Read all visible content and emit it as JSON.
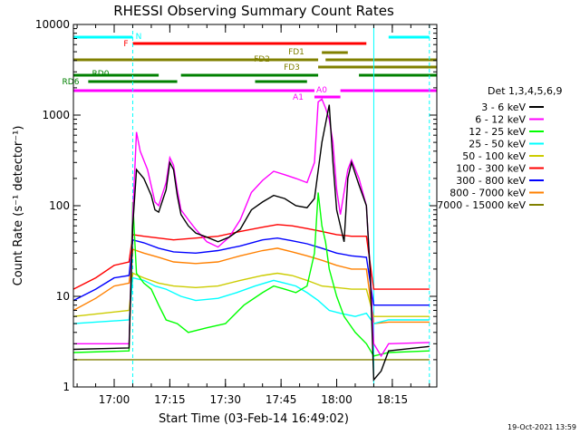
{
  "chart_data": {
    "type": "line",
    "title": "RHESSI Observing Summary Count Rates",
    "xlabel": "Start Time (03-Feb-14 16:49:02)",
    "ylabel": "Count Rate (s⁻¹ detector⁻¹)",
    "y_scale": "log",
    "ylim": [
      1,
      10000
    ],
    "xlim": [
      "16:49",
      "18:27"
    ],
    "x_unit": "clock time HH:MM",
    "x_ticks": [
      "17:00",
      "17:15",
      "17:30",
      "17:45",
      "18:00",
      "18:15"
    ],
    "y_ticks": [
      "1",
      "10",
      "100",
      "1000",
      "10000"
    ],
    "legend_title": "Det 1,3,4,5,6,9",
    "legend_position": "right",
    "timestamp": "19-Oct-2021 13:59",
    "flag_bars": [
      {
        "label": "N",
        "color": "#00ffff",
        "segments": [
          [
            "16:49",
            "17:05"
          ],
          [
            "18:14",
            "18:25"
          ]
        ]
      },
      {
        "label": "F",
        "color": "#ff0000",
        "segments": [
          [
            "17:05",
            "18:08"
          ]
        ]
      },
      {
        "label": "FD1",
        "color": "#808000",
        "segments": [
          [
            "17:56",
            "18:03"
          ]
        ]
      },
      {
        "label": "FD2",
        "color": "#808000",
        "segments": [
          [
            "16:49",
            "17:55"
          ],
          [
            "17:57",
            "18:27"
          ]
        ]
      },
      {
        "label": "FD3",
        "color": "#808000",
        "segments": [
          [
            "17:55",
            "18:27"
          ]
        ]
      },
      {
        "label": "RD0",
        "color": "#008000",
        "segments": [
          [
            "16:49",
            "17:12"
          ],
          [
            "17:18",
            "17:55"
          ],
          [
            "18:06",
            "18:27"
          ]
        ]
      },
      {
        "label": "RD6",
        "color": "#008000",
        "segments": [
          [
            "16:53",
            "17:17"
          ],
          [
            "17:38",
            "17:52"
          ]
        ]
      },
      {
        "label": "A1",
        "color": "#ff00ff",
        "segments": [
          [
            "16:49",
            "17:54"
          ],
          [
            "18:01",
            "18:27"
          ]
        ]
      },
      {
        "label": "A0",
        "color": "#ff00ff",
        "segments": [
          [
            "17:54",
            "18:01"
          ]
        ]
      }
    ],
    "markers": [
      {
        "name": "dashed-start",
        "x": "17:05",
        "color": "#00ffff"
      },
      {
        "name": "dashed-end",
        "x": "18:25",
        "color": "#00ffff"
      },
      {
        "name": "solid-edge",
        "x": "18:10",
        "color": "#00ffff"
      }
    ],
    "series": [
      {
        "name": "3 - 6 keV",
        "color": "#000000",
        "points": [
          [
            "16:49",
            2.6
          ],
          [
            "17:04",
            2.7
          ],
          [
            "17:05",
            60
          ],
          [
            "17:06",
            250
          ],
          [
            "17:08",
            200
          ],
          [
            "17:10",
            130
          ],
          [
            "17:11",
            90
          ],
          [
            "17:12",
            85
          ],
          [
            "17:14",
            150
          ],
          [
            "17:15",
            300
          ],
          [
            "17:16",
            250
          ],
          [
            "17:17",
            130
          ],
          [
            "17:18",
            80
          ],
          [
            "17:20",
            60
          ],
          [
            "17:22",
            50
          ],
          [
            "17:25",
            45
          ],
          [
            "17:28",
            40
          ],
          [
            "17:31",
            45
          ],
          [
            "17:34",
            55
          ],
          [
            "17:37",
            90
          ],
          [
            "17:40",
            110
          ],
          [
            "17:43",
            130
          ],
          [
            "17:46",
            120
          ],
          [
            "17:49",
            100
          ],
          [
            "17:52",
            95
          ],
          [
            "17:54",
            120
          ],
          [
            "17:56",
            500
          ],
          [
            "17:58",
            1300
          ],
          [
            "17:59",
            300
          ],
          [
            "18:00",
            90
          ],
          [
            "18:02",
            40
          ],
          [
            "18:03",
            200
          ],
          [
            "18:04",
            300
          ],
          [
            "18:06",
            170
          ],
          [
            "18:08",
            100
          ],
          [
            "18:09",
            20
          ],
          [
            "18:10",
            1.2
          ],
          [
            "18:12",
            1.5
          ],
          [
            "18:14",
            2.5
          ],
          [
            "18:25",
            2.8
          ]
        ]
      },
      {
        "name": "6 - 12 keV",
        "color": "#ff00ff",
        "points": [
          [
            "16:49",
            3.0
          ],
          [
            "17:04",
            3.0
          ],
          [
            "17:05",
            80
          ],
          [
            "17:06",
            650
          ],
          [
            "17:07",
            400
          ],
          [
            "17:09",
            250
          ],
          [
            "17:11",
            110
          ],
          [
            "17:12",
            100
          ],
          [
            "17:14",
            180
          ],
          [
            "17:15",
            340
          ],
          [
            "17:16",
            280
          ],
          [
            "17:17",
            150
          ],
          [
            "17:18",
            90
          ],
          [
            "17:20",
            70
          ],
          [
            "17:22",
            55
          ],
          [
            "17:25",
            40
          ],
          [
            "17:28",
            35
          ],
          [
            "17:31",
            45
          ],
          [
            "17:34",
            70
          ],
          [
            "17:37",
            140
          ],
          [
            "17:40",
            190
          ],
          [
            "17:43",
            240
          ],
          [
            "17:46",
            220
          ],
          [
            "17:49",
            200
          ],
          [
            "17:52",
            180
          ],
          [
            "17:54",
            300
          ],
          [
            "17:55",
            1400
          ],
          [
            "17:56",
            1500
          ],
          [
            "17:57",
            1200
          ],
          [
            "17:58",
            900
          ],
          [
            "17:59",
            500
          ],
          [
            "18:00",
            150
          ],
          [
            "18:01",
            80
          ],
          [
            "18:03",
            250
          ],
          [
            "18:04",
            320
          ],
          [
            "18:06",
            200
          ],
          [
            "18:08",
            100
          ],
          [
            "18:09",
            20
          ],
          [
            "18:10",
            3
          ],
          [
            "18:12",
            2.2
          ],
          [
            "18:14",
            3
          ],
          [
            "18:25",
            3.1
          ]
        ]
      },
      {
        "name": "12 - 25 keV",
        "color": "#00ff00",
        "points": [
          [
            "16:49",
            2.4
          ],
          [
            "17:04",
            2.5
          ],
          [
            "17:05",
            110
          ],
          [
            "17:06",
            18
          ],
          [
            "17:08",
            14
          ],
          [
            "17:10",
            12
          ],
          [
            "17:12",
            8
          ],
          [
            "17:14",
            5.5
          ],
          [
            "17:17",
            5
          ],
          [
            "17:20",
            4
          ],
          [
            "17:25",
            4.5
          ],
          [
            "17:30",
            5
          ],
          [
            "17:35",
            8
          ],
          [
            "17:40",
            11
          ],
          [
            "17:43",
            13
          ],
          [
            "17:46",
            12
          ],
          [
            "17:49",
            11
          ],
          [
            "17:52",
            13
          ],
          [
            "17:54",
            30
          ],
          [
            "17:55",
            140
          ],
          [
            "17:56",
            60
          ],
          [
            "17:57",
            40
          ],
          [
            "17:58",
            20
          ],
          [
            "18:00",
            10
          ],
          [
            "18:02",
            6
          ],
          [
            "18:05",
            4
          ],
          [
            "18:08",
            3
          ],
          [
            "18:10",
            2.2
          ],
          [
            "18:14",
            2.4
          ],
          [
            "18:25",
            2.5
          ]
        ]
      },
      {
        "name": "25 - 50 keV",
        "color": "#00ffff",
        "points": [
          [
            "16:49",
            5
          ],
          [
            "17:04",
            5.5
          ],
          [
            "17:05",
            16
          ],
          [
            "17:08",
            15
          ],
          [
            "17:11",
            13
          ],
          [
            "17:14",
            12
          ],
          [
            "17:18",
            10
          ],
          [
            "17:22",
            9
          ],
          [
            "17:28",
            9.5
          ],
          [
            "17:33",
            11
          ],
          [
            "17:38",
            13
          ],
          [
            "17:43",
            15
          ],
          [
            "17:46",
            14
          ],
          [
            "17:49",
            13
          ],
          [
            "17:52",
            11
          ],
          [
            "17:55",
            9
          ],
          [
            "17:58",
            7
          ],
          [
            "18:01",
            6.5
          ],
          [
            "18:05",
            6
          ],
          [
            "18:08",
            6.5
          ],
          [
            "18:10",
            5
          ],
          [
            "18:14",
            5.5
          ],
          [
            "18:25",
            5.5
          ]
        ]
      },
      {
        "name": "50 - 100 keV",
        "color": "#cccc00",
        "points": [
          [
            "16:49",
            6
          ],
          [
            "17:04",
            7
          ],
          [
            "17:05",
            18
          ],
          [
            "17:08",
            16
          ],
          [
            "17:12",
            14
          ],
          [
            "17:16",
            13
          ],
          [
            "17:22",
            12.5
          ],
          [
            "17:28",
            13
          ],
          [
            "17:34",
            15
          ],
          [
            "17:40",
            17
          ],
          [
            "17:44",
            18
          ],
          [
            "17:48",
            17
          ],
          [
            "17:52",
            15
          ],
          [
            "17:56",
            13
          ],
          [
            "18:00",
            12.5
          ],
          [
            "18:04",
            12
          ],
          [
            "18:08",
            12
          ],
          [
            "18:10",
            6
          ],
          [
            "18:14",
            6
          ],
          [
            "18:25",
            6
          ]
        ]
      },
      {
        "name": "100 - 300 keV",
        "color": "#ff0000",
        "points": [
          [
            "16:49",
            12
          ],
          [
            "16:55",
            16
          ],
          [
            "17:00",
            22
          ],
          [
            "17:04",
            24
          ],
          [
            "17:05",
            48
          ],
          [
            "17:08",
            46
          ],
          [
            "17:12",
            44
          ],
          [
            "17:16",
            42
          ],
          [
            "17:22",
            44
          ],
          [
            "17:28",
            46
          ],
          [
            "17:34",
            52
          ],
          [
            "17:40",
            58
          ],
          [
            "17:44",
            62
          ],
          [
            "17:48",
            60
          ],
          [
            "17:52",
            56
          ],
          [
            "17:56",
            52
          ],
          [
            "18:00",
            48
          ],
          [
            "18:04",
            46
          ],
          [
            "18:08",
            46
          ],
          [
            "18:10",
            12
          ],
          [
            "18:14",
            12
          ],
          [
            "18:25",
            12
          ]
        ]
      },
      {
        "name": "300 - 800 keV",
        "color": "#0000ff",
        "points": [
          [
            "16:49",
            9
          ],
          [
            "16:55",
            12
          ],
          [
            "17:00",
            16
          ],
          [
            "17:04",
            17
          ],
          [
            "17:05",
            42
          ],
          [
            "17:08",
            39
          ],
          [
            "17:12",
            34
          ],
          [
            "17:16",
            31
          ],
          [
            "17:22",
            30
          ],
          [
            "17:28",
            32
          ],
          [
            "17:34",
            36
          ],
          [
            "17:40",
            42
          ],
          [
            "17:44",
            44
          ],
          [
            "17:48",
            41
          ],
          [
            "17:52",
            38
          ],
          [
            "17:56",
            34
          ],
          [
            "18:00",
            30
          ],
          [
            "18:04",
            28
          ],
          [
            "18:08",
            27
          ],
          [
            "18:10",
            8
          ],
          [
            "18:14",
            8
          ],
          [
            "18:25",
            8
          ]
        ]
      },
      {
        "name": "800 - 7000 keV",
        "color": "#ff8000",
        "points": [
          [
            "16:49",
            7
          ],
          [
            "16:55",
            9.5
          ],
          [
            "17:00",
            13
          ],
          [
            "17:04",
            14
          ],
          [
            "17:05",
            33
          ],
          [
            "17:08",
            30
          ],
          [
            "17:12",
            27
          ],
          [
            "17:16",
            24
          ],
          [
            "17:22",
            23
          ],
          [
            "17:28",
            24
          ],
          [
            "17:34",
            28
          ],
          [
            "17:40",
            32
          ],
          [
            "17:44",
            34
          ],
          [
            "17:48",
            31
          ],
          [
            "17:52",
            28
          ],
          [
            "17:56",
            25
          ],
          [
            "18:00",
            22
          ],
          [
            "18:04",
            20
          ],
          [
            "18:08",
            20
          ],
          [
            "18:10",
            5
          ],
          [
            "18:14",
            5.2
          ],
          [
            "18:25",
            5.2
          ]
        ]
      },
      {
        "name": "7000 - 15000 keV",
        "color": "#808000",
        "points": [
          [
            "16:49",
            2
          ],
          [
            "18:25",
            2
          ]
        ]
      }
    ]
  }
}
